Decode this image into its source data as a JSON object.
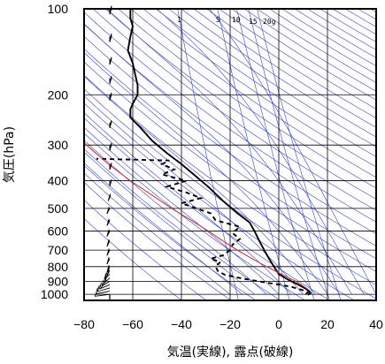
{
  "chart_data": {
    "type": "line",
    "title": "",
    "xlabel": "気温(実線), 露点(破線)",
    "ylabel": "気圧(hPa)",
    "xlim": [
      -80,
      40
    ],
    "ylim": [
      1050,
      100
    ],
    "yscale": "log",
    "grid": true,
    "x_ticks": [
      "−80",
      "−60",
      "−40",
      "−20",
      "0",
      "20",
      "40"
    ],
    "x_tick_values": [
      -80,
      -60,
      -40,
      -20,
      0,
      20,
      40
    ],
    "y_ticks": [
      "100",
      "200",
      "300",
      "400",
      "500",
      "600",
      "700",
      "800",
      "900",
      "1000"
    ],
    "y_tick_values": [
      100,
      200,
      300,
      400,
      500,
      600,
      700,
      800,
      900,
      1000
    ],
    "mixing_ratio_labels": [
      "1",
      "5",
      "10",
      "15",
      "20g"
    ],
    "mixing_ratio_values": [
      1,
      5,
      10,
      15,
      20
    ],
    "colors": {
      "temperature": "#000000",
      "dewpoint": "#000000",
      "parcel": "#cc3344",
      "guide_lines": "#3344cc",
      "grid": "#000000"
    },
    "series": [
      {
        "key": "temperature",
        "style": "solid",
        "points": [
          [
            12,
            1005
          ],
          [
            13,
            990
          ],
          [
            12.5,
            975
          ],
          [
            11,
            955
          ],
          [
            8,
            925
          ],
          [
            4,
            890
          ],
          [
            0,
            850
          ],
          [
            -2,
            800
          ],
          [
            -4,
            750
          ],
          [
            -6,
            700
          ],
          [
            -8,
            650
          ],
          [
            -10,
            600
          ],
          [
            -12,
            560
          ],
          [
            -17,
            520
          ],
          [
            -23,
            470
          ],
          [
            -29,
            420
          ],
          [
            -35,
            380
          ],
          [
            -40,
            350
          ],
          [
            -46,
            320
          ],
          [
            -52,
            290
          ],
          [
            -57,
            260
          ],
          [
            -61,
            240
          ],
          [
            -61,
            225
          ],
          [
            -60,
            215
          ],
          [
            -58,
            200
          ],
          [
            -58,
            185
          ],
          [
            -59,
            170
          ],
          [
            -60,
            155
          ],
          [
            -62,
            140
          ],
          [
            -61,
            125
          ],
          [
            -60,
            115
          ],
          [
            -61,
            108
          ],
          [
            -61,
            100
          ]
        ]
      },
      {
        "key": "dewpoint",
        "style": "dashed",
        "points": [
          [
            11,
            1000
          ],
          [
            12,
            985
          ],
          [
            10,
            968
          ],
          [
            5,
            940
          ],
          [
            -5,
            910
          ],
          [
            -15,
            880
          ],
          [
            -22,
            855
          ],
          [
            -25,
            830
          ],
          [
            -26,
            800
          ],
          [
            -24,
            770
          ],
          [
            -28,
            750
          ],
          [
            -23,
            730
          ],
          [
            -20,
            700
          ],
          [
            -19,
            670
          ],
          [
            -16,
            640
          ],
          [
            -19,
            610
          ],
          [
            -16,
            580
          ],
          [
            -26,
            550
          ],
          [
            -28,
            520
          ],
          [
            -40,
            480
          ],
          [
            -32,
            460
          ],
          [
            -38,
            440
          ],
          [
            -46,
            420
          ],
          [
            -38,
            400
          ],
          [
            -48,
            380
          ],
          [
            -43,
            365
          ],
          [
            -48,
            350
          ],
          [
            -45,
            340
          ],
          [
            -75,
            335
          ]
        ]
      },
      {
        "key": "parcel",
        "style": "solid",
        "points": [
          [
            12,
            960
          ],
          [
            7,
            900
          ],
          [
            1,
            850
          ],
          [
            -5,
            800
          ],
          [
            -11,
            750
          ],
          [
            -17,
            700
          ],
          [
            -23,
            650
          ],
          [
            -29,
            600
          ],
          [
            -36,
            550
          ],
          [
            -44,
            500
          ],
          [
            -52,
            450
          ],
          [
            -61,
            400
          ],
          [
            -70,
            350
          ],
          [
            -79,
            300
          ],
          [
            -88,
            250
          ],
          [
            -95,
            210
          ]
        ]
      }
    ],
    "wind_barbs": [
      {
        "p": 1000,
        "spd": 5,
        "dir": 200
      },
      {
        "p": 975,
        "spd": 10,
        "dir": 210
      },
      {
        "p": 950,
        "spd": 10,
        "dir": 220
      },
      {
        "p": 925,
        "spd": 15,
        "dir": 230
      },
      {
        "p": 900,
        "spd": 15,
        "dir": 240
      },
      {
        "p": 875,
        "spd": 20,
        "dir": 250
      },
      {
        "p": 850,
        "spd": 20,
        "dir": 250
      },
      {
        "p": 825,
        "spd": 20,
        "dir": 260
      },
      {
        "p": 800,
        "spd": 25,
        "dir": 260
      },
      {
        "p": 750,
        "spd": 20,
        "dir": 260
      },
      {
        "p": 700,
        "spd": 20,
        "dir": 260
      },
      {
        "p": 650,
        "spd": 20,
        "dir": 260
      },
      {
        "p": 600,
        "spd": 25,
        "dir": 260
      },
      {
        "p": 550,
        "spd": 25,
        "dir": 260
      },
      {
        "p": 500,
        "spd": 20,
        "dir": 260
      },
      {
        "p": 450,
        "spd": 25,
        "dir": 265
      },
      {
        "p": 400,
        "spd": 20,
        "dir": 270
      },
      {
        "p": 350,
        "spd": 25,
        "dir": 270
      },
      {
        "p": 300,
        "spd": 35,
        "dir": 270
      },
      {
        "p": 250,
        "spd": 35,
        "dir": 270
      },
      {
        "p": 200,
        "spd": 30,
        "dir": 270
      },
      {
        "p": 175,
        "spd": 35,
        "dir": 270
      },
      {
        "p": 150,
        "spd": 35,
        "dir": 270
      },
      {
        "p": 125,
        "spd": 40,
        "dir": 270
      },
      {
        "p": 100,
        "spd": 40,
        "dir": 270
      }
    ]
  }
}
